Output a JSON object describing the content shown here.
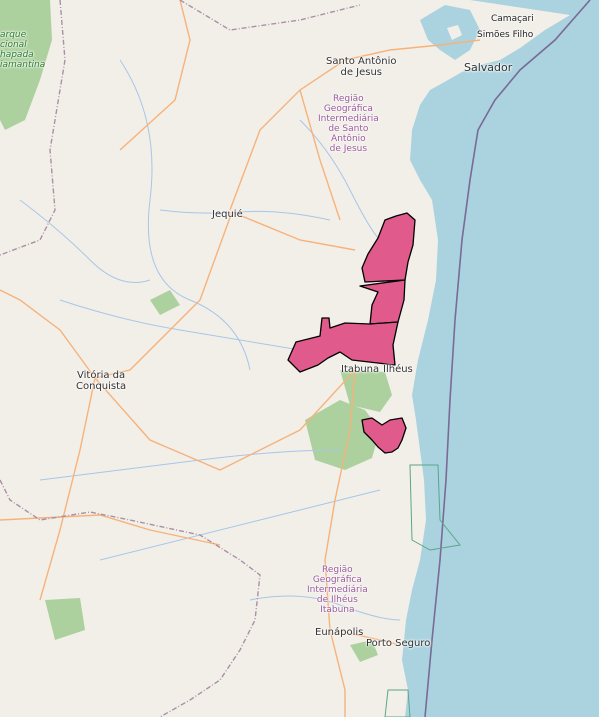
{
  "map": {
    "colors": {
      "land": "#f2efe9",
      "sea": "#aad3df",
      "highlight": "#e05a8c",
      "highlight_border": "#000000",
      "road": "#f7b27a",
      "river": "#a7c6e8",
      "admin_border": "#a891a5",
      "forest": "#add19e"
    },
    "labels": {
      "camacari": "Camaçari",
      "simoes_filho": "Simões Filho",
      "salvador": "Salvador",
      "santo_antonio": "Santo Antônio\nde Jesus",
      "region_santo_antonio": "Região\nGeográfica\nIntermediária\nde Santo\nAntônio\nde Jesus",
      "jequie": "Jequié",
      "vitoria": "Vitória da\nConquista",
      "itabuna": "Itabuna",
      "ilheus": "Ilhéus",
      "region_ilheus": "Região\nGeográfica\nIntermediária\nde Ilhéus\nItabuna",
      "eunapolis": "Eunápolis",
      "porto_seguro": "Porto Seguro",
      "park": "arque\ncional\nhapada\niamantina"
    }
  }
}
